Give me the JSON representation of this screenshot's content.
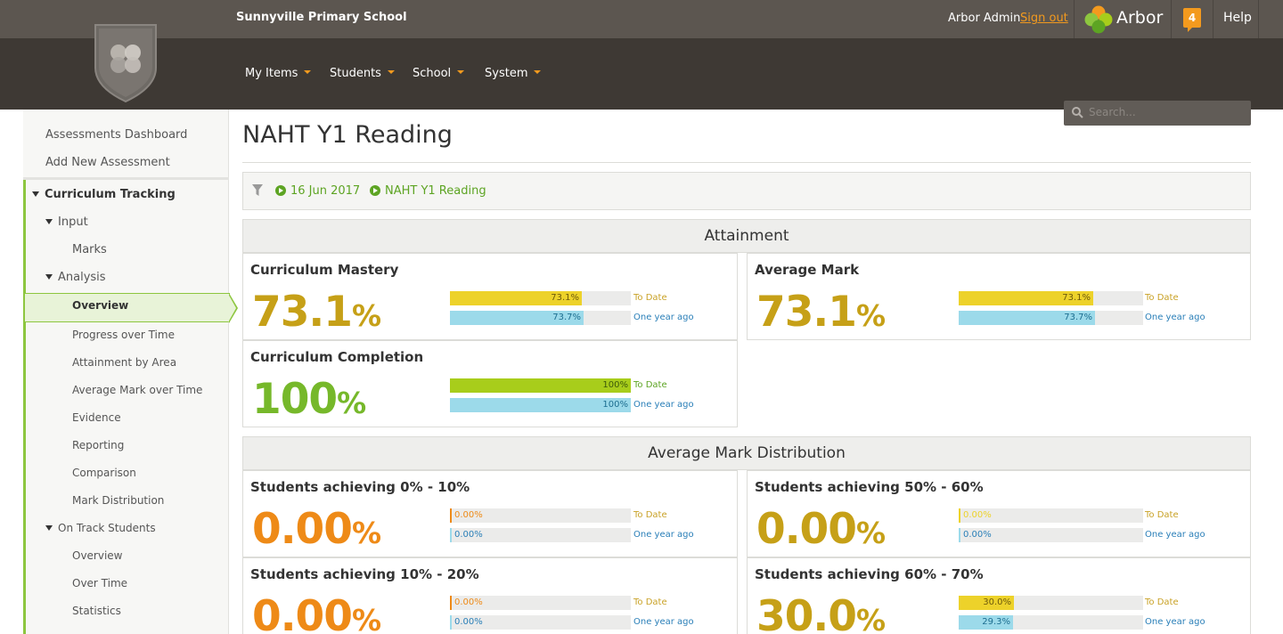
{
  "header": {
    "school_name": "Sunnyville Primary School",
    "admin_name": "Arbor Admin",
    "sign_out": "Sign out",
    "brand": "Arbor",
    "notification_count": "4",
    "help": "Help",
    "search_placeholder": "Search...",
    "nav": [
      {
        "label": "My Items"
      },
      {
        "label": "Students"
      },
      {
        "label": "School"
      },
      {
        "label": "System"
      }
    ]
  },
  "sidebar": {
    "top_links": [
      "Assessments Dashboard",
      "Add New Assessment"
    ],
    "curriculum_tracking": "Curriculum Tracking",
    "input": "Input",
    "marks": "Marks",
    "analysis": "Analysis",
    "analysis_items": [
      "Overview",
      "Progress over Time",
      "Attainment by Area",
      "Average Mark over Time",
      "Evidence",
      "Reporting",
      "Comparison",
      "Mark Distribution"
    ],
    "on_track": "On Track Students",
    "on_track_items": [
      "Overview",
      "Over Time",
      "Statistics"
    ]
  },
  "main": {
    "title": "NAHT Y1 Reading",
    "filters": [
      "16 Jun 2017",
      "NAHT Y1 Reading"
    ],
    "attainment_heading": "Attainment",
    "distribution_heading": "Average Mark Distribution",
    "caption_today": "To Date",
    "caption_year": "One year ago",
    "cards": [
      {
        "title": "Curriculum Mastery",
        "value": "73.1",
        "unit": "%",
        "today": "73.1%",
        "year": "73.7%",
        "today_frac": 0.731,
        "year_frac": 0.737,
        "value_color": "#c6a017",
        "today_color": "#edd22a",
        "year_color": "#9cdaea"
      },
      {
        "title": "Average Mark",
        "value": "73.1",
        "unit": "%",
        "today": "73.1%",
        "year": "73.7%",
        "today_frac": 0.731,
        "year_frac": 0.737,
        "value_color": "#c6a017",
        "today_color": "#edd22a",
        "year_color": "#9cdaea"
      },
      {
        "title": "Curriculum Completion",
        "value": "100",
        "unit": "%",
        "today": "100%",
        "year": "100%",
        "today_frac": 1.0,
        "year_frac": 1.0,
        "value_color": "#76b82a",
        "today_color": "#a8cd1b",
        "year_color": "#9cdaea"
      },
      {
        "title": "Students achieving 0% - 10%",
        "value": "0.00",
        "unit": "%",
        "today": "0.00%",
        "year": "0.00%",
        "today_frac": 0.0,
        "year_frac": 0.0,
        "value_color": "#ee8a17",
        "today_color": "#ee8a17",
        "year_color": "#9cdaea"
      },
      {
        "title": "Students achieving 50% - 60%",
        "value": "0.00",
        "unit": "%",
        "today": "0.00%",
        "year": "0.00%",
        "today_frac": 0.0,
        "year_frac": 0.0,
        "value_color": "#c6a017",
        "today_color": "#edd22a",
        "year_color": "#9cdaea"
      },
      {
        "title": "Students achieving 10% - 20%",
        "value": "0.00",
        "unit": "%",
        "today": "0.00%",
        "year": "0.00%",
        "today_frac": 0.0,
        "year_frac": 0.0,
        "value_color": "#ee8a17",
        "today_color": "#ee8a17",
        "year_color": "#9cdaea"
      },
      {
        "title": "Students achieving 60% - 70%",
        "value": "30.0",
        "unit": "%",
        "today": "30.0%",
        "year": "29.3%",
        "today_frac": 0.3,
        "year_frac": 0.293,
        "value_color": "#c6a017",
        "today_color": "#edd22a",
        "year_color": "#9cdaea"
      }
    ]
  }
}
